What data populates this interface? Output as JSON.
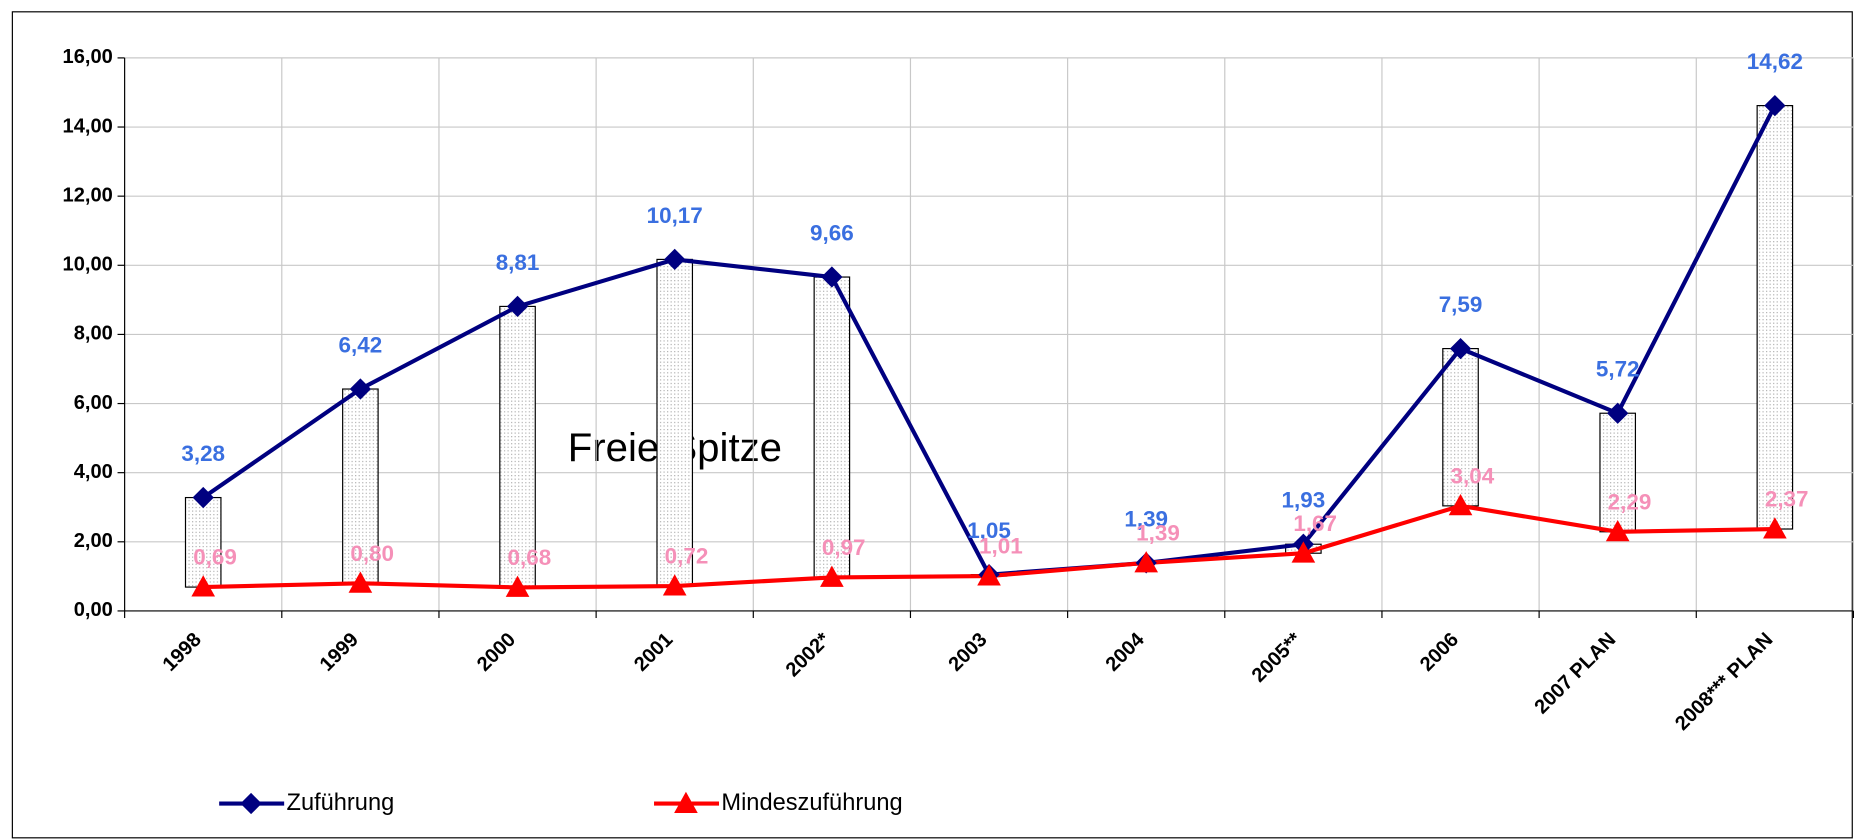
{
  "chart_data": {
    "type": "line",
    "categories": [
      "1998",
      "1999",
      "2000",
      "2001",
      "2002*",
      "2003",
      "2004",
      "2005**",
      "2006",
      "2007 PLAN",
      "2008*** PLAN"
    ],
    "series": [
      {
        "name": "Zuführung",
        "color": "#000080",
        "label_color": "#3a6fe0",
        "values": [
          3.28,
          6.42,
          8.81,
          10.17,
          9.66,
          1.05,
          1.39,
          1.93,
          7.59,
          5.72,
          14.62
        ],
        "value_labels": [
          "3,28",
          "6,42",
          "8,81",
          "10,17",
          "9,66",
          "1,05",
          "1,39",
          "1,93",
          "7,59",
          "5,72",
          "14,62"
        ]
      },
      {
        "name": "Mindeszuführung",
        "color": "#ff0000",
        "label_color": "#f590b8",
        "values": [
          0.69,
          0.8,
          0.68,
          0.72,
          0.97,
          1.01,
          1.39,
          1.67,
          3.04,
          2.29,
          2.37
        ],
        "value_labels": [
          "0,69",
          "0,80",
          "0,68",
          "0,72",
          "0,97",
          "1,01",
          "1,39",
          "1,67",
          "3,04",
          "2,29",
          "2,37"
        ]
      }
    ],
    "annotation": "Freie Spitze",
    "ylim": [
      0,
      16
    ],
    "yticks": [
      {
        "value": 0,
        "label": "0,00"
      },
      {
        "value": 2,
        "label": "2,00"
      },
      {
        "value": 4,
        "label": "4,00"
      },
      {
        "value": 6,
        "label": "6,00"
      },
      {
        "value": 8,
        "label": "8,00"
      },
      {
        "value": 10,
        "label": "10,00"
      },
      {
        "value": 12,
        "label": "12,00"
      },
      {
        "value": 14,
        "label": "14,00"
      },
      {
        "value": 16,
        "label": "16,00"
      }
    ],
    "grid": true,
    "legend": "bottom"
  }
}
